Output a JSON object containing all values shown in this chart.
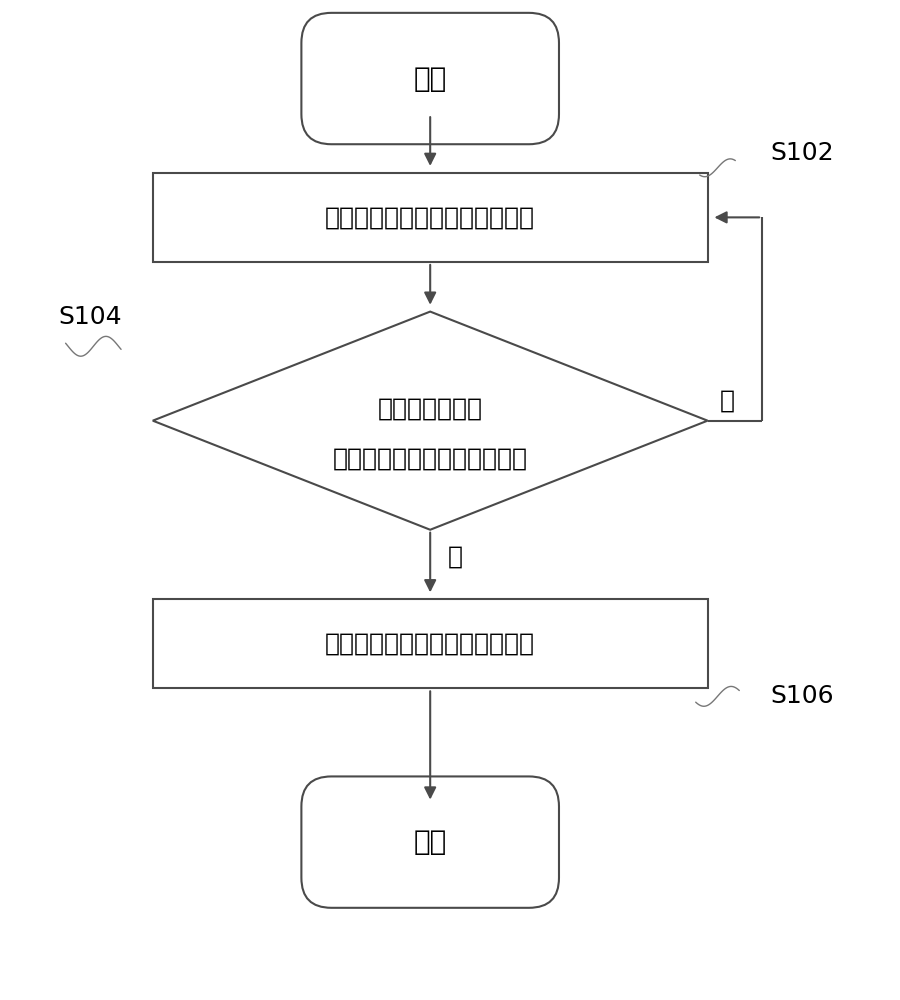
{
  "bg_color": "#ffffff",
  "line_color": "#4a4a4a",
  "fill_color": "#ffffff",
  "text_color": "#000000",
  "start_text": "开始",
  "end_text": "结束",
  "rect1_text": "检测空调器的压缩机运行的时间",
  "diamond_line1": "判断压缩机运行",
  "diamond_line2": "的时间是否大于第一预设时间",
  "rect2_text": "控制空调器运行于消除挂水模式",
  "label_s102": "S102",
  "label_s104": "S104",
  "label_s106": "S106",
  "yes_text": "是",
  "no_text": "否",
  "font_size": 18,
  "label_font_size": 16,
  "lw": 1.5
}
